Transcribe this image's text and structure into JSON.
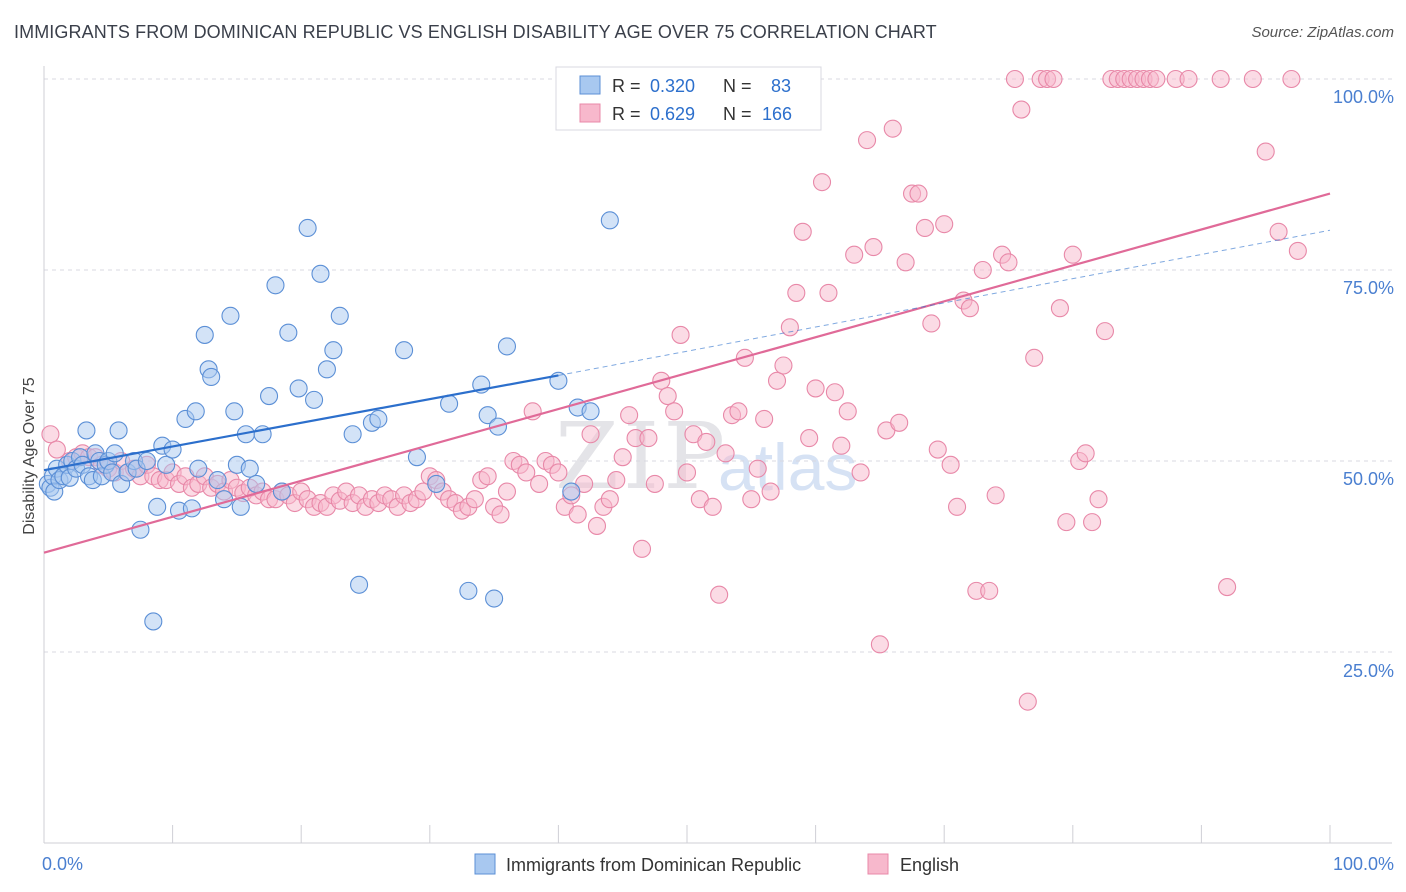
{
  "title": "IMMIGRANTS FROM DOMINICAN REPUBLIC VS ENGLISH DISABILITY AGE OVER 75 CORRELATION CHART",
  "source": "Source: ZipAtlas.com",
  "watermark": {
    "zip": "ZIP",
    "atlas": "atlas"
  },
  "colors": {
    "blue_fill": "#a8c8f0",
    "blue_stroke": "#5b8fd6",
    "blue_line": "#2c6fcc",
    "pink_fill": "#f7b8cc",
    "pink_stroke": "#e888a8",
    "pink_line": "#e06a98",
    "axis_text": "#4a7fd0",
    "grid": "#d8d8e0"
  },
  "legend": {
    "rows": [
      {
        "r_label": "R = ",
        "r_value": "0.320",
        "n_label": "N = ",
        "n_value": "83"
      },
      {
        "r_label": "R = ",
        "r_value": "0.629",
        "n_label": "N = ",
        "n_value": "166"
      }
    ]
  },
  "bottom_legend": [
    "Immigrants from Dominican Republic",
    "English"
  ],
  "chart_data": {
    "type": "scatter",
    "title": "IMMIGRANTS FROM DOMINICAN REPUBLIC VS ENGLISH DISABILITY AGE OVER 75 CORRELATION CHART",
    "xlabel": "",
    "ylabel": "Disability Age Over 75",
    "xlim": [
      0,
      100
    ],
    "ylim": [
      0,
      100
    ],
    "x_tick_labels": [
      "0.0%",
      "100.0%"
    ],
    "y_tick_labels": [
      "25.0%",
      "50.0%",
      "75.0%",
      "100.0%"
    ],
    "y_ticks": [
      25,
      50,
      75,
      100
    ],
    "grid": true,
    "legend_position": "top-center",
    "series": [
      {
        "name": "Immigrants from Dominican Republic",
        "color": "#a8c8f0",
        "trend": {
          "x": [
            0,
            40
          ],
          "y": [
            48.8,
            61.2
          ],
          "dashed_x": [
            40,
            100
          ],
          "dashed_y": [
            61.2,
            80.2
          ]
        },
        "points": [
          [
            0.3,
            47
          ],
          [
            0.5,
            46.5
          ],
          [
            0.7,
            48
          ],
          [
            0.8,
            46
          ],
          [
            1,
            49
          ],
          [
            1.2,
            47.5
          ],
          [
            1.5,
            48
          ],
          [
            1.8,
            49.5
          ],
          [
            2,
            47.8
          ],
          [
            2.2,
            50
          ],
          [
            2.5,
            49
          ],
          [
            2.8,
            50.5
          ],
          [
            3,
            49.5
          ],
          [
            3.3,
            54
          ],
          [
            3.5,
            48
          ],
          [
            3.8,
            47.5
          ],
          [
            4,
            51
          ],
          [
            4.3,
            50
          ],
          [
            4.5,
            48
          ],
          [
            4.8,
            49.5
          ],
          [
            5,
            50
          ],
          [
            5.3,
            48.5
          ],
          [
            5.5,
            51
          ],
          [
            5.8,
            54
          ],
          [
            6,
            47
          ],
          [
            6.5,
            48.5
          ],
          [
            7,
            50
          ],
          [
            7.2,
            49
          ],
          [
            7.5,
            41
          ],
          [
            8,
            50
          ],
          [
            8.5,
            29
          ],
          [
            8.8,
            44
          ],
          [
            9.2,
            52
          ],
          [
            9.5,
            49.5
          ],
          [
            10,
            51.5
          ],
          [
            10.5,
            43.5
          ],
          [
            11,
            55.5
          ],
          [
            11.5,
            43.8
          ],
          [
            11.8,
            56.5
          ],
          [
            12,
            49
          ],
          [
            12.5,
            66.5
          ],
          [
            12.8,
            62
          ],
          [
            13,
            61
          ],
          [
            13.5,
            47.5
          ],
          [
            14,
            45
          ],
          [
            14.5,
            69
          ],
          [
            14.8,
            56.5
          ],
          [
            15,
            49.5
          ],
          [
            15.3,
            44
          ],
          [
            15.7,
            53.5
          ],
          [
            16,
            49
          ],
          [
            16.5,
            47
          ],
          [
            17,
            53.5
          ],
          [
            17.5,
            58.5
          ],
          [
            18,
            73
          ],
          [
            18.5,
            46
          ],
          [
            19,
            66.8
          ],
          [
            19.8,
            59.5
          ],
          [
            20.5,
            80.5
          ],
          [
            21,
            58
          ],
          [
            21.5,
            74.5
          ],
          [
            22,
            62
          ],
          [
            22.5,
            64.5
          ],
          [
            23,
            69
          ],
          [
            24,
            53.5
          ],
          [
            24.5,
            33.8
          ],
          [
            25.5,
            55
          ],
          [
            26,
            55.5
          ],
          [
            28,
            64.5
          ],
          [
            29,
            50.5
          ],
          [
            30.5,
            47
          ],
          [
            31.5,
            57.5
          ],
          [
            33,
            33
          ],
          [
            34,
            60
          ],
          [
            34.5,
            56
          ],
          [
            35,
            32
          ],
          [
            35.3,
            54.5
          ],
          [
            36,
            65
          ],
          [
            40,
            60.5
          ],
          [
            41,
            46
          ],
          [
            41.5,
            57
          ],
          [
            42.5,
            56.5
          ],
          [
            44,
            81.5
          ]
        ]
      },
      {
        "name": "English",
        "color": "#f7b8cc",
        "trend": {
          "x": [
            0,
            100
          ],
          "y": [
            38,
            85
          ]
        },
        "points": [
          [
            0.5,
            53.5
          ],
          [
            1,
            51.5
          ],
          [
            2,
            50
          ],
          [
            2.5,
            50.5
          ],
          [
            3,
            51
          ],
          [
            3.5,
            50.5
          ],
          [
            4,
            50.5
          ],
          [
            4.5,
            49.5
          ],
          [
            5,
            49
          ],
          [
            5.5,
            48.5
          ],
          [
            6,
            50
          ],
          [
            6.5,
            48.5
          ],
          [
            7,
            49
          ],
          [
            7.5,
            48
          ],
          [
            8,
            49.5
          ],
          [
            8.5,
            48
          ],
          [
            9,
            47.5
          ],
          [
            9.5,
            47.5
          ],
          [
            10,
            48.5
          ],
          [
            10.5,
            47
          ],
          [
            11,
            48
          ],
          [
            11.5,
            46.5
          ],
          [
            12,
            47
          ],
          [
            12.5,
            48
          ],
          [
            13,
            46.5
          ],
          [
            13.5,
            47
          ],
          [
            14,
            46
          ],
          [
            14.5,
            47.5
          ],
          [
            15,
            46.5
          ],
          [
            15.5,
            45.8
          ],
          [
            16,
            46.5
          ],
          [
            16.5,
            45.5
          ],
          [
            17,
            46
          ],
          [
            17.5,
            45
          ],
          [
            18,
            45
          ],
          [
            18.5,
            46
          ],
          [
            19,
            45.5
          ],
          [
            19.5,
            44.5
          ],
          [
            20,
            46
          ],
          [
            20.5,
            45
          ],
          [
            21,
            44
          ],
          [
            21.5,
            44.5
          ],
          [
            22,
            44
          ],
          [
            22.5,
            45.5
          ],
          [
            23,
            44.8
          ],
          [
            23.5,
            46
          ],
          [
            24,
            44.5
          ],
          [
            24.5,
            45.5
          ],
          [
            25,
            44
          ],
          [
            25.5,
            45
          ],
          [
            26,
            44.5
          ],
          [
            26.5,
            45.5
          ],
          [
            27,
            45
          ],
          [
            27.5,
            44
          ],
          [
            28,
            45.5
          ],
          [
            28.5,
            44.5
          ],
          [
            29,
            45
          ],
          [
            29.5,
            46
          ],
          [
            30,
            48
          ],
          [
            30.5,
            47.5
          ],
          [
            31,
            46
          ],
          [
            31.5,
            45
          ],
          [
            32,
            44.5
          ],
          [
            32.5,
            43.5
          ],
          [
            33,
            44
          ],
          [
            33.5,
            45
          ],
          [
            34,
            47.5
          ],
          [
            34.5,
            48
          ],
          [
            35,
            44
          ],
          [
            35.5,
            43
          ],
          [
            36,
            46
          ],
          [
            36.5,
            50
          ],
          [
            37,
            49.5
          ],
          [
            37.5,
            48.5
          ],
          [
            38,
            56.5
          ],
          [
            38.5,
            47
          ],
          [
            39,
            50
          ],
          [
            39.5,
            49.5
          ],
          [
            40,
            48.5
          ],
          [
            40.5,
            44
          ],
          [
            41,
            45.5
          ],
          [
            41.5,
            43
          ],
          [
            42,
            47
          ],
          [
            42.5,
            53.5
          ],
          [
            43,
            41.5
          ],
          [
            43.5,
            44
          ],
          [
            44,
            45
          ],
          [
            44.5,
            47.5
          ],
          [
            45,
            50.5
          ],
          [
            45.5,
            56
          ],
          [
            46,
            53
          ],
          [
            46.5,
            38.5
          ],
          [
            47,
            53
          ],
          [
            47.5,
            47
          ],
          [
            48,
            60.5
          ],
          [
            48.5,
            58.5
          ],
          [
            49,
            56.5
          ],
          [
            49.5,
            66.5
          ],
          [
            50,
            48.5
          ],
          [
            50.5,
            53.5
          ],
          [
            51,
            45
          ],
          [
            51.5,
            52.5
          ],
          [
            52,
            44
          ],
          [
            52.5,
            32.5
          ],
          [
            53,
            51
          ],
          [
            53.5,
            56
          ],
          [
            54,
            56.5
          ],
          [
            54.5,
            63.5
          ],
          [
            55,
            45
          ],
          [
            55.5,
            49
          ],
          [
            56,
            55.5
          ],
          [
            56.5,
            46
          ],
          [
            57,
            60.5
          ],
          [
            57.5,
            62.5
          ],
          [
            58,
            67.5
          ],
          [
            58.5,
            72
          ],
          [
            59,
            80
          ],
          [
            59.5,
            53
          ],
          [
            60,
            59.5
          ],
          [
            60.5,
            86.5
          ],
          [
            61,
            72
          ],
          [
            61.5,
            59
          ],
          [
            62,
            52
          ],
          [
            62.5,
            56.5
          ],
          [
            63,
            77
          ],
          [
            63.5,
            48.5
          ],
          [
            64,
            92
          ],
          [
            64.5,
            78
          ],
          [
            65,
            26
          ],
          [
            65.5,
            54
          ],
          [
            66,
            93.5
          ],
          [
            66.5,
            55
          ],
          [
            67,
            76
          ],
          [
            67.5,
            85
          ],
          [
            68,
            85
          ],
          [
            68.5,
            80.5
          ],
          [
            69,
            68
          ],
          [
            69.5,
            51.5
          ],
          [
            70,
            81
          ],
          [
            70.5,
            49.5
          ],
          [
            71,
            44
          ],
          [
            71.5,
            71
          ],
          [
            72,
            70
          ],
          [
            72.5,
            33
          ],
          [
            73,
            75
          ],
          [
            73.5,
            33
          ],
          [
            74,
            45.5
          ],
          [
            74.5,
            77
          ],
          [
            75,
            76
          ],
          [
            75.5,
            100
          ],
          [
            76,
            96
          ],
          [
            76.5,
            18.5
          ],
          [
            77,
            63.5
          ],
          [
            77.5,
            100
          ],
          [
            78,
            100
          ],
          [
            78.5,
            100
          ],
          [
            79,
            70
          ],
          [
            79.5,
            42
          ],
          [
            80,
            77
          ],
          [
            80.5,
            50
          ],
          [
            81,
            51
          ],
          [
            81.5,
            42
          ],
          [
            82,
            45
          ],
          [
            82.5,
            67
          ],
          [
            83,
            100
          ],
          [
            83.5,
            100
          ],
          [
            84,
            100
          ],
          [
            84.5,
            100
          ],
          [
            85,
            100
          ],
          [
            85.5,
            100
          ],
          [
            86,
            100
          ],
          [
            86.5,
            100
          ],
          [
            88,
            100
          ],
          [
            89,
            100
          ],
          [
            91.5,
            100
          ],
          [
            92,
            33.5
          ],
          [
            94,
            100
          ],
          [
            95,
            90.5
          ],
          [
            96,
            80
          ],
          [
            97,
            100
          ],
          [
            97.5,
            77.5
          ]
        ]
      }
    ]
  }
}
